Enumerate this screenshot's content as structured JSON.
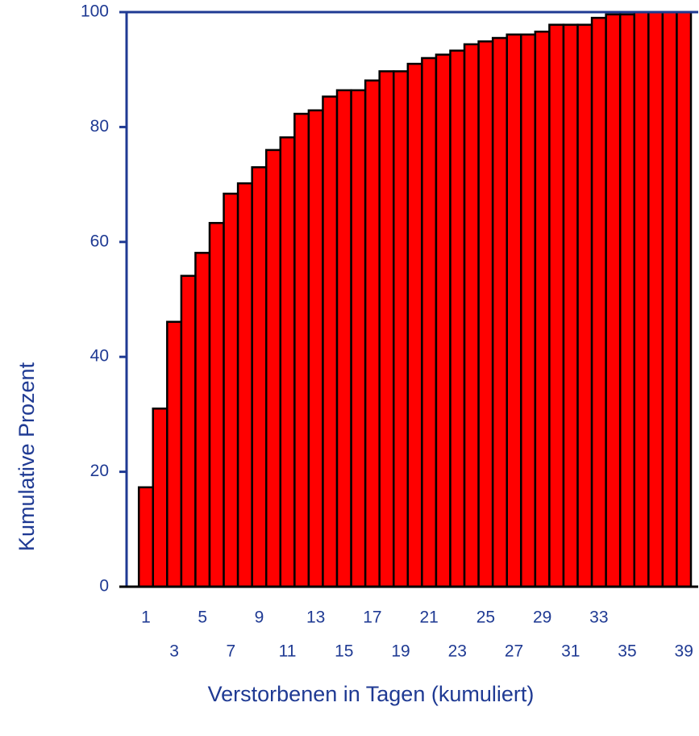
{
  "chart_data": {
    "type": "bar",
    "x_label": "Verstorbenen in Tagen (kumuliert)",
    "y_label": "Kumulative Prozent",
    "categories": [
      "1",
      null,
      "3",
      null,
      "5",
      null,
      "7",
      null,
      "9",
      null,
      "11",
      null,
      "13",
      null,
      "15",
      null,
      "17",
      null,
      "19",
      null,
      "21",
      null,
      "23",
      null,
      "25",
      null,
      "27",
      null,
      "29",
      null,
      "31",
      null,
      "33",
      null,
      "35",
      null,
      null,
      null,
      "39"
    ],
    "values": [
      17.3,
      31,
      46.1,
      54.1,
      58.1,
      63.3,
      68.4,
      70.2,
      73,
      76,
      78.2,
      82.3,
      82.9,
      85.3,
      86.4,
      86.4,
      88.1,
      89.7,
      89.7,
      91,
      92,
      92.6,
      93.3,
      94.4,
      94.9,
      95.5,
      96.1,
      96.1,
      96.6,
      97.8,
      97.8,
      97.8,
      99,
      99.6,
      99.6,
      100,
      100,
      100,
      100
    ],
    "color": "#ff0000",
    "ylim": [
      0,
      100
    ],
    "yticks": [
      0,
      20,
      40,
      60,
      80,
      100
    ],
    "grid": false
  }
}
